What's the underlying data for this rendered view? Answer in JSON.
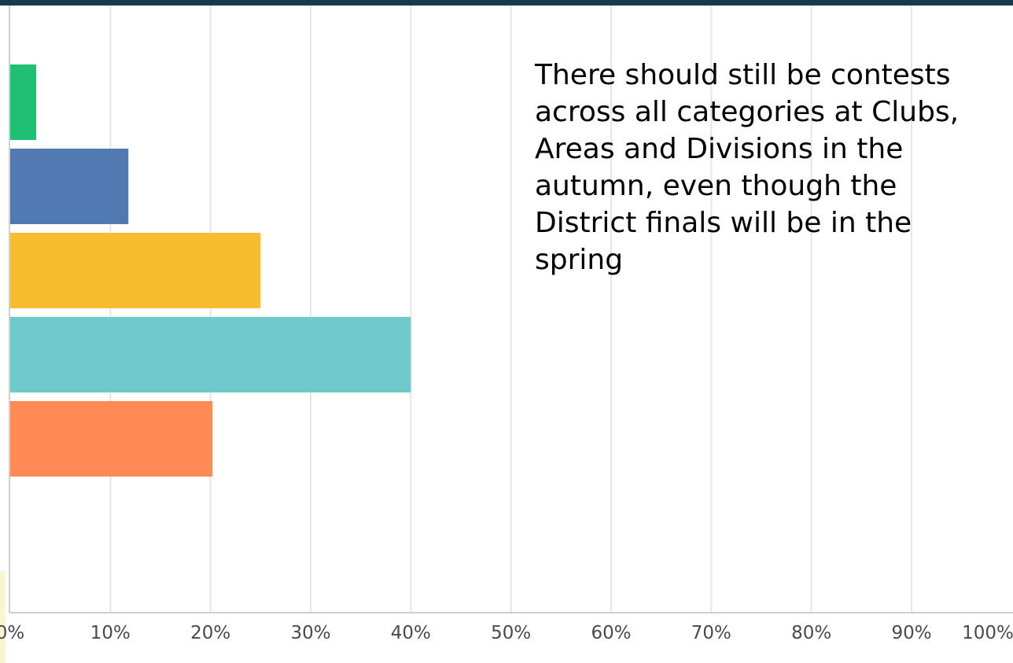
{
  "question": {
    "text": "There should still be contests across all categories at Clubs, Areas and Divisions in the autumn, even though the District finals will be in the spring"
  },
  "chart_data": {
    "type": "bar",
    "orientation": "horizontal",
    "categories": [
      "",
      "",
      "",
      "",
      "",
      ""
    ],
    "values": [
      2.6,
      11.8,
      25.0,
      40.0,
      20.2,
      0
    ],
    "colors": [
      "#1fbf74",
      "#5179b2",
      "#f8bc30",
      "#70c9ca",
      "#ff8a56",
      "#cccccc"
    ],
    "x_ticks": [
      "0%",
      "10%",
      "20%",
      "30%",
      "40%",
      "50%",
      "60%",
      "70%",
      "80%",
      "90%",
      "100%"
    ],
    "xlim": [
      0,
      100
    ],
    "xlabel": "",
    "ylabel": "",
    "grid": true,
    "legend": "none"
  }
}
